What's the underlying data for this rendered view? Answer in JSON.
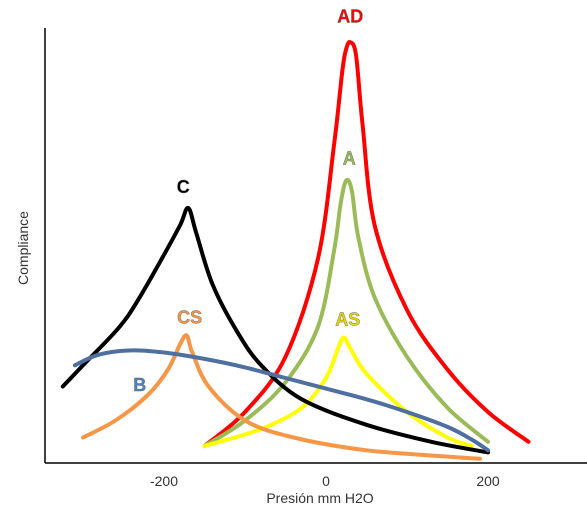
{
  "chart_data": {
    "type": "line",
    "xlabel": "Presión mm H2O",
    "ylabel": "Compliance",
    "xlim": [
      -400,
      300
    ],
    "ylim": [
      0,
      1
    ],
    "xticks": [
      -200,
      0,
      200
    ],
    "xtick_labels": [
      "-200",
      "0",
      "200"
    ],
    "grid": false,
    "legend": "none (series labelled directly on the curves)",
    "series": [
      {
        "name": "AD",
        "color": "#ff0000",
        "label_color": "#ff0000",
        "points": [
          [
            -150,
            0.04
          ],
          [
            -100,
            0.12
          ],
          [
            -50,
            0.25
          ],
          [
            -10,
            0.48
          ],
          [
            10,
            0.75
          ],
          [
            20,
            0.92
          ],
          [
            25,
            0.975
          ],
          [
            30,
            0.99
          ],
          [
            37,
            0.96
          ],
          [
            45,
            0.8
          ],
          [
            60,
            0.56
          ],
          [
            100,
            0.36
          ],
          [
            150,
            0.22
          ],
          [
            200,
            0.12
          ],
          [
            250,
            0.05
          ]
        ]
      },
      {
        "name": "A",
        "color": "#9bbb59",
        "label_color": "#9bbb59",
        "points": [
          [
            -150,
            0.04
          ],
          [
            -100,
            0.1
          ],
          [
            -50,
            0.19
          ],
          [
            -10,
            0.32
          ],
          [
            10,
            0.5
          ],
          [
            18,
            0.61
          ],
          [
            25,
            0.665
          ],
          [
            32,
            0.64
          ],
          [
            40,
            0.53
          ],
          [
            60,
            0.39
          ],
          [
            100,
            0.25
          ],
          [
            150,
            0.13
          ],
          [
            200,
            0.05
          ]
        ]
      },
      {
        "name": "AS",
        "color": "#ffff00",
        "label_color": "#e6d800",
        "points": [
          [
            -150,
            0.04
          ],
          [
            -80,
            0.08
          ],
          [
            -30,
            0.13
          ],
          [
            0,
            0.2
          ],
          [
            15,
            0.27
          ],
          [
            22,
            0.295
          ],
          [
            30,
            0.27
          ],
          [
            50,
            0.21
          ],
          [
            100,
            0.12
          ],
          [
            150,
            0.06
          ],
          [
            180,
            0.04
          ]
        ]
      },
      {
        "name": "C",
        "color": "#000000",
        "label_color": "#000000",
        "points": [
          [
            -325,
            0.18
          ],
          [
            -300,
            0.23
          ],
          [
            -255,
            0.32
          ],
          [
            -230,
            0.39
          ],
          [
            -200,
            0.49
          ],
          [
            -180,
            0.56
          ],
          [
            -170,
            0.6
          ],
          [
            -160,
            0.54
          ],
          [
            -140,
            0.42
          ],
          [
            -110,
            0.31
          ],
          [
            -80,
            0.23
          ],
          [
            -30,
            0.15
          ],
          [
            50,
            0.09
          ],
          [
            130,
            0.05
          ],
          [
            200,
            0.025
          ]
        ]
      },
      {
        "name": "CS",
        "color": "#f79646",
        "label_color": "#f79646",
        "points": [
          [
            -300,
            0.06
          ],
          [
            -260,
            0.1
          ],
          [
            -220,
            0.16
          ],
          [
            -195,
            0.22
          ],
          [
            -180,
            0.28
          ],
          [
            -172,
            0.3
          ],
          [
            -165,
            0.26
          ],
          [
            -145,
            0.18
          ],
          [
            -100,
            0.1
          ],
          [
            -40,
            0.06
          ],
          [
            50,
            0.03
          ],
          [
            150,
            0.015
          ],
          [
            190,
            0.01
          ]
        ]
      },
      {
        "name": "B",
        "color": "#4f6fa0",
        "label_color": "#4f81bd",
        "points": [
          [
            -310,
            0.23
          ],
          [
            -280,
            0.255
          ],
          [
            -240,
            0.265
          ],
          [
            -200,
            0.26
          ],
          [
            -150,
            0.245
          ],
          [
            -100,
            0.225
          ],
          [
            -50,
            0.2
          ],
          [
            0,
            0.175
          ],
          [
            50,
            0.15
          ],
          [
            100,
            0.12
          ],
          [
            150,
            0.085
          ],
          [
            180,
            0.055
          ],
          [
            200,
            0.03
          ]
        ]
      }
    ]
  },
  "colors": {
    "axis": "#000000",
    "tick_text": "#333333"
  }
}
